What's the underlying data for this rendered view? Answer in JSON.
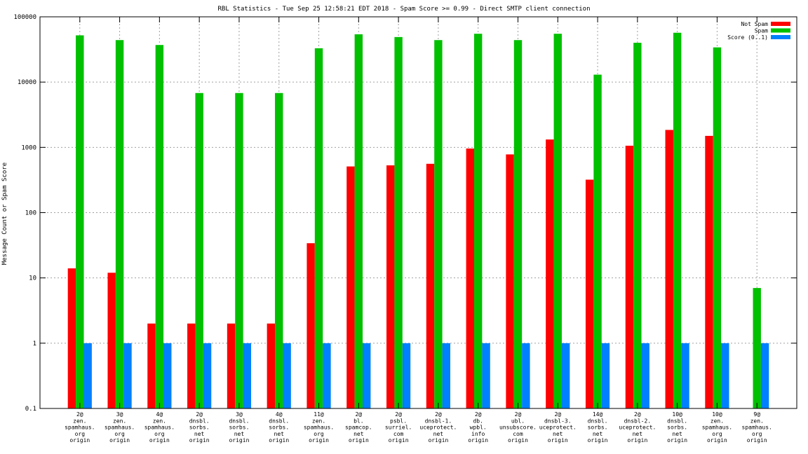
{
  "chart_data": {
    "type": "bar",
    "title": "RBL Statistics - Tue Sep 25 12:58:21 EDT 2018 - Spam Score >= 0.99 - Direct SMTP client connection",
    "xlabel": "",
    "ylabel": "Message Count or Spam Score",
    "yscale": "log",
    "ylim": [
      0.1,
      100000
    ],
    "yticks": [
      "0.1",
      "1",
      "10",
      "100",
      "1000",
      "10000",
      "100000"
    ],
    "grid": true,
    "legend_position": "top-right",
    "categories": [
      [
        "2@",
        "zen.",
        "spamhaus.",
        "org",
        "origin"
      ],
      [
        "3@",
        "zen.",
        "spamhaus.",
        "org",
        "origin"
      ],
      [
        "4@",
        "zen.",
        "spamhaus.",
        "org",
        "origin"
      ],
      [
        "2@",
        "dnsbl.",
        "sorbs.",
        "net",
        "origin"
      ],
      [
        "3@",
        "dnsbl.",
        "sorbs.",
        "net",
        "origin"
      ],
      [
        "4@",
        "dnsbl.",
        "sorbs.",
        "net",
        "origin"
      ],
      [
        "11@",
        "zen.",
        "spamhaus.",
        "org",
        "origin"
      ],
      [
        "2@",
        "bl.",
        "spamcop.",
        "net",
        "origin"
      ],
      [
        "2@",
        "psbl.",
        "surriel.",
        "com",
        "origin"
      ],
      [
        "2@",
        "dnsbl-1.",
        "uceprotect.",
        "net",
        "origin"
      ],
      [
        "2@",
        "db.",
        "wpbl.",
        "info",
        "origin"
      ],
      [
        "2@",
        "ubl.",
        "unsubscore.",
        "com",
        "origin"
      ],
      [
        "2@",
        "dnsbl-3.",
        "uceprotect.",
        "net",
        "origin"
      ],
      [
        "14@",
        "dnsbl.",
        "sorbs.",
        "net",
        "origin"
      ],
      [
        "2@",
        "dnsbl-2.",
        "uceprotect.",
        "net",
        "origin"
      ],
      [
        "10@",
        "dnsbl.",
        "sorbs.",
        "net",
        "origin"
      ],
      [
        "10@",
        "zen.",
        "spamhaus.",
        "org",
        "origin"
      ],
      [
        "9@",
        "zen.",
        "spamhaus.",
        "org",
        "origin"
      ]
    ],
    "series": [
      {
        "name": "Not Spam",
        "color": "#ff0000",
        "values": [
          14,
          12,
          2,
          2,
          2,
          2,
          34,
          510,
          530,
          560,
          960,
          780,
          1320,
          320,
          1060,
          1850,
          1500,
          0
        ]
      },
      {
        "name": "Spam",
        "color": "#00c000",
        "values": [
          52000,
          44000,
          37000,
          6800,
          6800,
          6800,
          33000,
          54000,
          49000,
          44000,
          55000,
          44000,
          55000,
          13000,
          40000,
          57000,
          34000,
          7
        ]
      },
      {
        "name": "Score (0..1)",
        "color": "#0080ff",
        "values": [
          1,
          1,
          1,
          1,
          1,
          1,
          1,
          1,
          1,
          1,
          1,
          1,
          1,
          1,
          1,
          1,
          1,
          1
        ]
      }
    ]
  }
}
